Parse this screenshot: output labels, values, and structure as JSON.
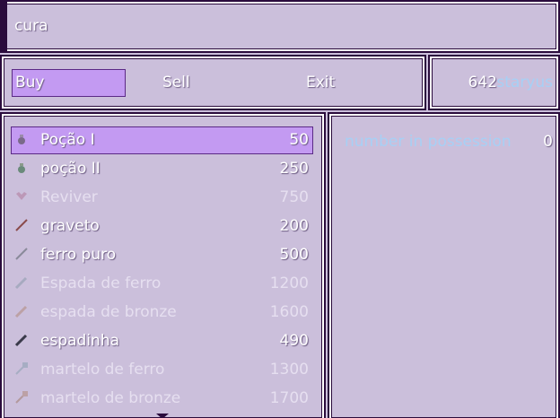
{
  "help": {
    "text": "cura"
  },
  "commands": [
    "Buy",
    "Sell",
    "Exit"
  ],
  "selected_command": 0,
  "gold": {
    "amount": 642,
    "unit": "staryus"
  },
  "items": [
    {
      "name": "Poção I",
      "price": 50,
      "enabled": true
    },
    {
      "name": "poção II",
      "price": 250,
      "enabled": true
    },
    {
      "name": "Reviver",
      "price": 750,
      "enabled": false
    },
    {
      "name": "graveto",
      "price": 200,
      "enabled": true
    },
    {
      "name": "ferro puro",
      "price": 500,
      "enabled": true
    },
    {
      "name": "Espada de ferro",
      "price": 1200,
      "enabled": false
    },
    {
      "name": "espada de bronze",
      "price": 1600,
      "enabled": false
    },
    {
      "name": "espadinha",
      "price": 490,
      "enabled": true
    },
    {
      "name": "martelo de ferro",
      "price": 1300,
      "enabled": false
    },
    {
      "name": "martelo de bronze",
      "price": 1700,
      "enabled": false
    }
  ],
  "selected_item": 0,
  "status": {
    "label": "number in possession",
    "value": 0
  }
}
